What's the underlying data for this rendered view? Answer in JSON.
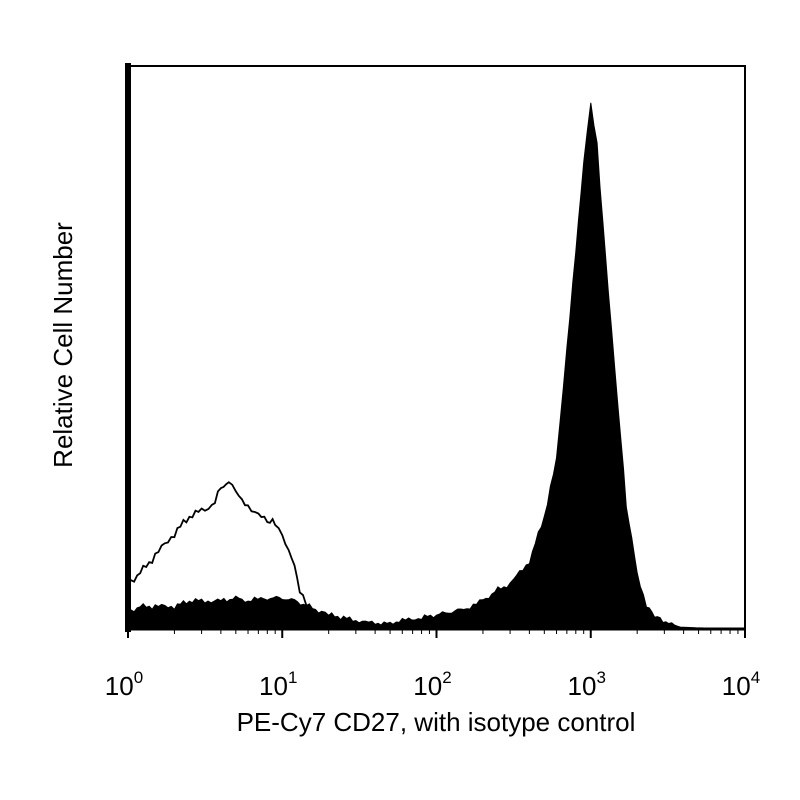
{
  "chart_data": {
    "type": "area",
    "title": "",
    "xlabel": "PE-Cy7 CD27, with isotype control",
    "ylabel": "Relative Cell Number",
    "x_scale": "log",
    "xlim": [
      1,
      10000
    ],
    "ylim": [
      0,
      100
    ],
    "x_ticks": [
      {
        "base": "10",
        "exp": "0",
        "value": 1
      },
      {
        "base": "10",
        "exp": "1",
        "value": 10
      },
      {
        "base": "10",
        "exp": "2",
        "value": 100
      },
      {
        "base": "10",
        "exp": "3",
        "value": 1000
      },
      {
        "base": "10",
        "exp": "4",
        "value": 10000
      }
    ],
    "grid": false,
    "series": [
      {
        "style": "filled",
        "color": "#000000",
        "x": [
          1,
          1.2,
          1.5,
          2,
          2.5,
          3,
          4,
          5,
          6,
          8,
          10,
          12,
          15,
          18,
          20,
          25,
          30,
          40,
          50,
          60,
          80,
          100,
          150,
          200,
          250,
          300,
          400,
          500,
          600,
          700,
          800,
          900,
          1000,
          1100,
          1200,
          1300,
          1500,
          1700,
          2000,
          2300,
          2700,
          3200,
          4000,
          5000,
          7000,
          10000
        ],
        "y": [
          3,
          4,
          4,
          4,
          5,
          5,
          5,
          5.5,
          5,
          5.5,
          5.5,
          5,
          4,
          3,
          2.5,
          2,
          1.5,
          1,
          1,
          1.5,
          2,
          2.5,
          3.5,
          5,
          7,
          8,
          12,
          20,
          30,
          50,
          67,
          83,
          93,
          86,
          72,
          60,
          40,
          22,
          10,
          4,
          2,
          1,
          0.3,
          0.2,
          0.1,
          0
        ]
      },
      {
        "style": "outline",
        "color": "#000000",
        "x": [
          1,
          1.2,
          1.5,
          2,
          2.5,
          3,
          3.5,
          4,
          4.5,
          5,
          6,
          7,
          8,
          9,
          10,
          11,
          12,
          13,
          15,
          18,
          20,
          25,
          30,
          40,
          50,
          100
        ],
        "y": [
          8,
          10,
          13,
          17,
          20,
          21,
          22,
          25,
          26,
          24,
          22,
          20,
          19.5,
          18.5,
          17,
          14,
          11,
          7,
          3,
          1,
          0.5,
          0.2,
          0,
          0,
          0,
          0
        ]
      }
    ]
  }
}
